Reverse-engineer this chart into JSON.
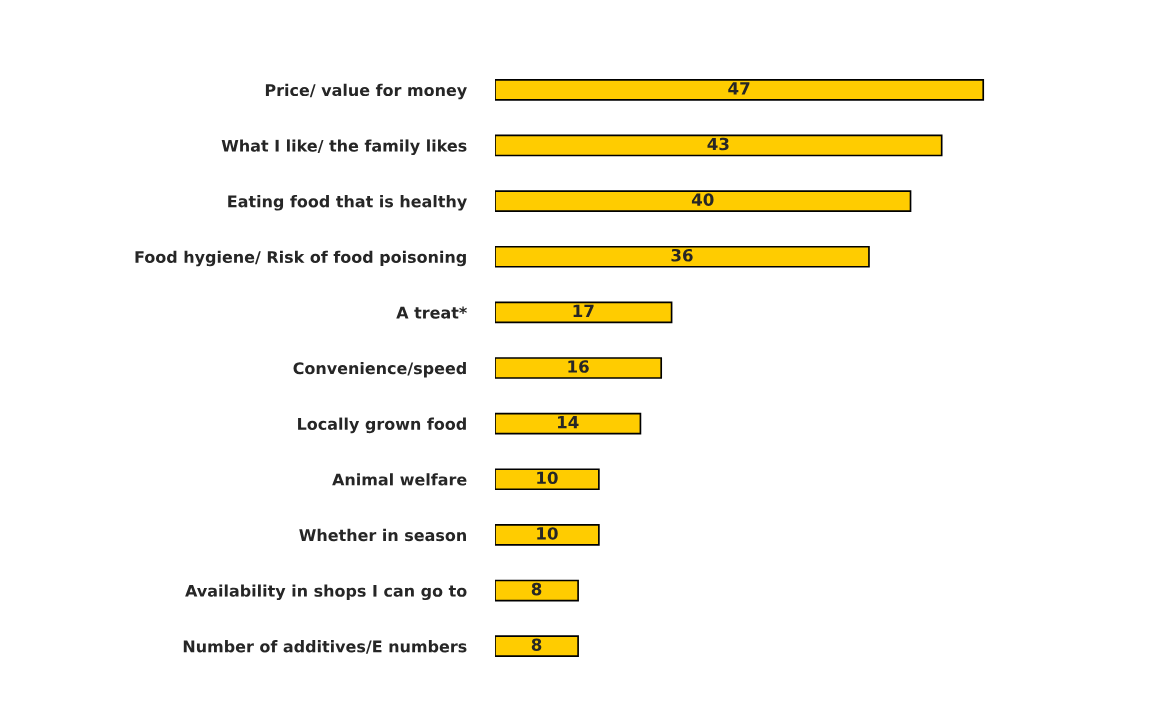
{
  "chart_data": {
    "type": "bar",
    "orientation": "horizontal",
    "categories": [
      "Price/ value for money",
      "What I like/ the family likes",
      "Eating food that is healthy",
      "Food hygiene/ Risk of food poisoning",
      "A treat*",
      "Convenience/speed",
      "Locally grown food",
      "Animal welfare",
      "Whether in season",
      "Availability in shops I can go to",
      "Number of additives/E numbers"
    ],
    "values": [
      47,
      43,
      40,
      36,
      17,
      16,
      14,
      10,
      10,
      8,
      8
    ],
    "color": "#ffcc00",
    "data_labels": true,
    "grid": false,
    "legend": false
  }
}
